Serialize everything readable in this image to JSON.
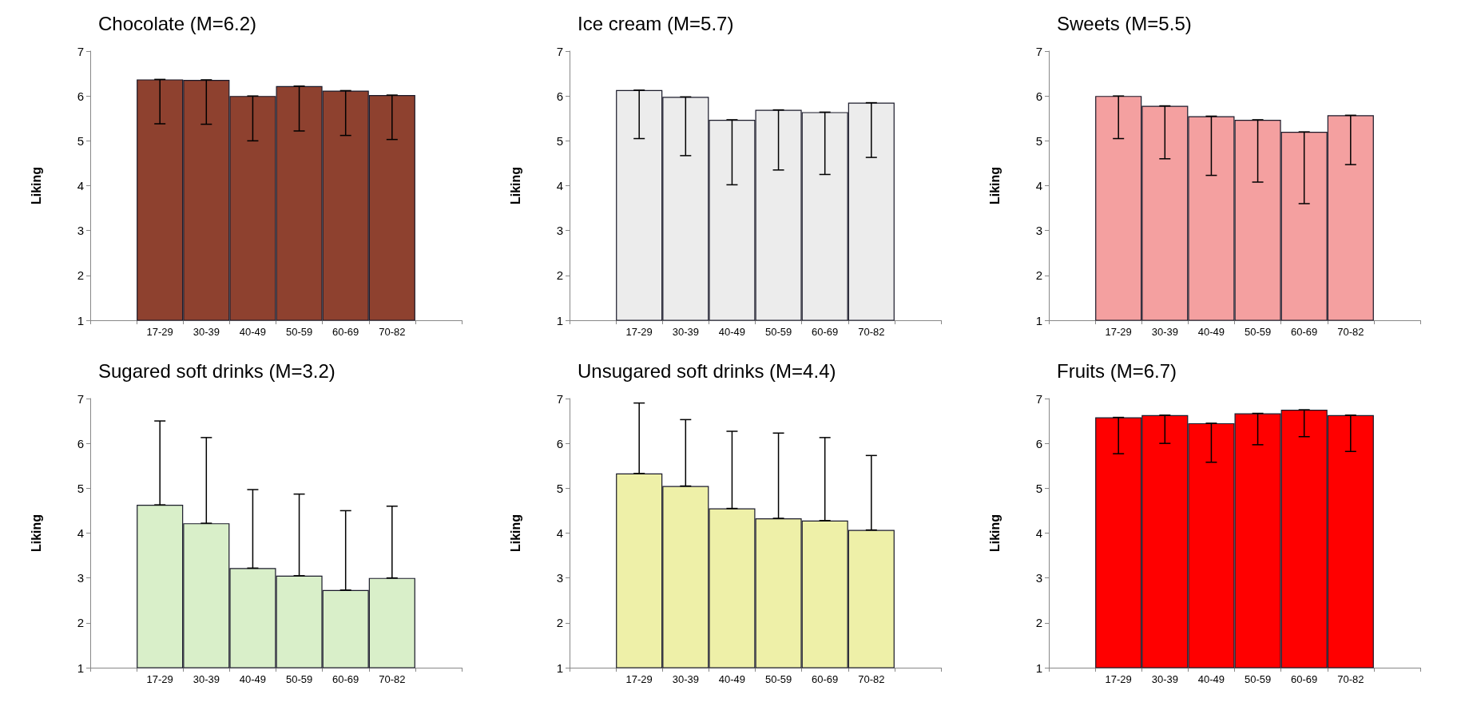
{
  "chart_data": [
    {
      "type": "bar",
      "title": "Chocolate (M=6.2)",
      "ylabel": "Liking",
      "categories": [
        null,
        "17-29",
        "30-39",
        "40-49",
        "50-59",
        "60-69",
        "70-82",
        null
      ],
      "ylim": [
        1,
        7
      ],
      "yticks": [
        1,
        2,
        3,
        4,
        5,
        6,
        7
      ],
      "grid": false,
      "color": "#8e412f",
      "values": [
        null,
        6.37,
        6.36,
        6.0,
        6.22,
        6.12,
        6.02,
        null
      ],
      "errors": [
        null,
        [
          5.38,
          6.37
        ],
        [
          5.37,
          6.36
        ],
        [
          5.0,
          6.0
        ],
        [
          5.22,
          6.22
        ],
        [
          5.12,
          6.12
        ],
        [
          5.03,
          6.02
        ],
        null
      ]
    },
    {
      "type": "bar",
      "title": "Ice cream (M=5.7)",
      "ylabel": "Liking",
      "categories": [
        null,
        "17-29",
        "30-39",
        "40-49",
        "50-59",
        "60-69",
        "70-82",
        null
      ],
      "ylim": [
        1,
        7
      ],
      "yticks": [
        1,
        2,
        3,
        4,
        5,
        6,
        7
      ],
      "grid": false,
      "color": "#ececec",
      "values": [
        null,
        6.13,
        5.98,
        5.47,
        5.69,
        5.64,
        5.85,
        null
      ],
      "errors": [
        null,
        [
          5.05,
          6.13
        ],
        [
          4.67,
          5.98
        ],
        [
          4.02,
          5.47
        ],
        [
          4.35,
          5.69
        ],
        [
          4.25,
          5.64
        ],
        [
          4.63,
          5.85
        ],
        null
      ]
    },
    {
      "type": "bar",
      "title": "Sweets (M=5.5)",
      "ylabel": "Liking",
      "categories": [
        null,
        "17-29",
        "30-39",
        "40-49",
        "50-59",
        "60-69",
        "70-82",
        null
      ],
      "ylim": [
        1,
        7
      ],
      "yticks": [
        1,
        2,
        3,
        4,
        5,
        6,
        7
      ],
      "grid": false,
      "color": "#f4a0a0",
      "values": [
        null,
        6.0,
        5.78,
        5.55,
        5.47,
        5.2,
        5.57,
        null
      ],
      "errors": [
        null,
        [
          5.05,
          6.0
        ],
        [
          4.6,
          5.78
        ],
        [
          4.23,
          5.55
        ],
        [
          4.08,
          5.47
        ],
        [
          3.6,
          5.2
        ],
        [
          4.47,
          5.57
        ],
        null
      ]
    },
    {
      "type": "bar",
      "title": "Sugared soft drinks (M=3.2)",
      "ylabel": "Liking",
      "categories": [
        null,
        "17-29",
        "30-39",
        "40-49",
        "50-59",
        "60-69",
        "70-82",
        null
      ],
      "ylim": [
        1,
        7
      ],
      "yticks": [
        1,
        2,
        3,
        4,
        5,
        6,
        7
      ],
      "grid": false,
      "color": "#d9efc9",
      "values": [
        null,
        4.63,
        4.22,
        3.22,
        3.05,
        2.73,
        3.0,
        null
      ],
      "errors": [
        null,
        [
          4.63,
          6.5
        ],
        [
          4.22,
          6.13
        ],
        [
          3.22,
          4.97
        ],
        [
          3.05,
          4.87
        ],
        [
          2.73,
          4.5
        ],
        [
          3.0,
          4.6
        ],
        null
      ]
    },
    {
      "type": "bar",
      "title": "Unsugared soft drinks (M=4.4)",
      "ylabel": "Liking",
      "categories": [
        null,
        "17-29",
        "30-39",
        "40-49",
        "50-59",
        "60-69",
        "70-82",
        null
      ],
      "ylim": [
        1,
        7
      ],
      "yticks": [
        1,
        2,
        3,
        4,
        5,
        6,
        7
      ],
      "grid": false,
      "color": "#eef0a8",
      "values": [
        null,
        5.33,
        5.05,
        4.55,
        4.33,
        4.28,
        4.07,
        null
      ],
      "errors": [
        null,
        [
          5.33,
          6.9
        ],
        [
          5.05,
          6.53
        ],
        [
          4.55,
          6.27
        ],
        [
          4.33,
          6.23
        ],
        [
          4.28,
          6.13
        ],
        [
          4.07,
          5.73
        ],
        null
      ]
    },
    {
      "type": "bar",
      "title": "Fruits (M=6.7)",
      "ylabel": "Liking",
      "categories": [
        null,
        "17-29",
        "30-39",
        "40-49",
        "50-59",
        "60-69",
        "70-82",
        null
      ],
      "ylim": [
        1,
        7
      ],
      "yticks": [
        1,
        2,
        3,
        4,
        5,
        6,
        7
      ],
      "grid": false,
      "color": "#ff0000",
      "values": [
        null,
        6.58,
        6.63,
        6.45,
        6.67,
        6.75,
        6.63,
        null
      ],
      "errors": [
        null,
        [
          5.77,
          6.58
        ],
        [
          6.0,
          6.63
        ],
        [
          5.58,
          6.45
        ],
        [
          5.97,
          6.67
        ],
        [
          6.15,
          6.75
        ],
        [
          5.82,
          6.63
        ],
        null
      ]
    }
  ]
}
